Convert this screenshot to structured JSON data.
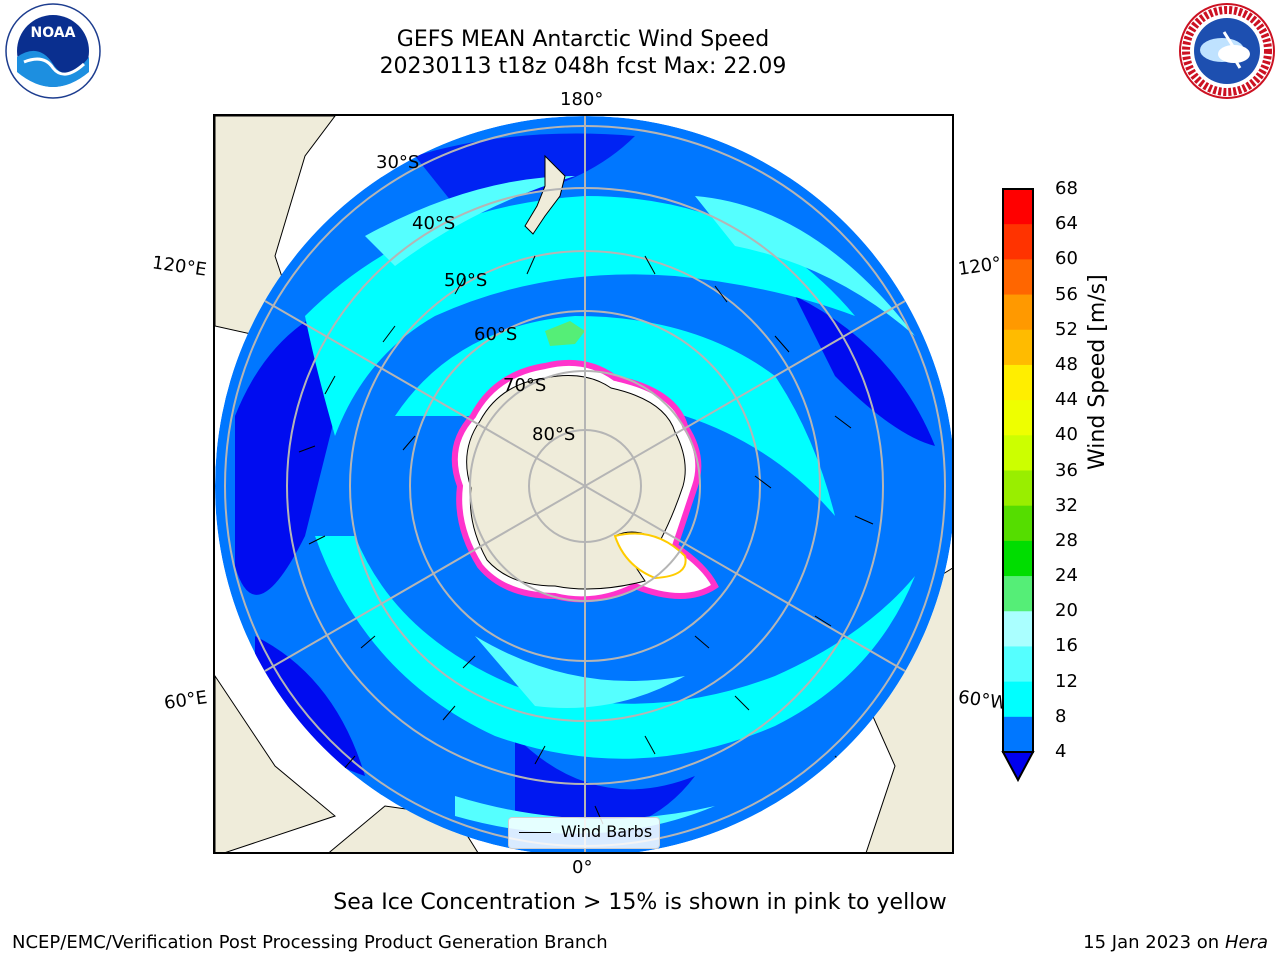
{
  "title_line1": "GEFS MEAN Antarctic Wind Speed",
  "title_line2": "20230113 t18z 048h fcst   Max: 22.09",
  "longitude_labels": {
    "top": "180°",
    "bottom": "0°",
    "upper_left": "120°E",
    "upper_right": "120°",
    "lower_left": "60°E",
    "lower_right": "60°W"
  },
  "latitude_labels": [
    "30°S",
    "40°S",
    "50°S",
    "60°S",
    "70°S",
    "80°S"
  ],
  "colorbar": {
    "label": "Wind Speed [m/s]",
    "ticks": [
      "68",
      "64",
      "60",
      "56",
      "52",
      "48",
      "44",
      "40",
      "36",
      "32",
      "28",
      "24",
      "20",
      "16",
      "12",
      "8",
      "4"
    ],
    "colors": [
      "#ff0000",
      "#ff3300",
      "#ff6600",
      "#ff9900",
      "#ffbb00",
      "#ffee00",
      "#eeff00",
      "#ccff00",
      "#99ee00",
      "#55dd00",
      "#00dd00",
      "#55ee77",
      "#aaffff",
      "#55ffff",
      "#00ffff",
      "#0077ff",
      "#0000ee"
    ]
  },
  "legend": {
    "label": "Wind Barbs"
  },
  "sea_ice_note": "Sea Ice Concentration > 15% is shown in pink to yellow",
  "footer": {
    "left": "NCEP/EMC/Verification Post Processing Product Generation Branch",
    "right_date": "15 Jan 2023 on",
    "right_host": "Hera"
  },
  "logos": {
    "left": "NOAA",
    "right": "NATIONAL WEATHER SERVICE"
  }
}
